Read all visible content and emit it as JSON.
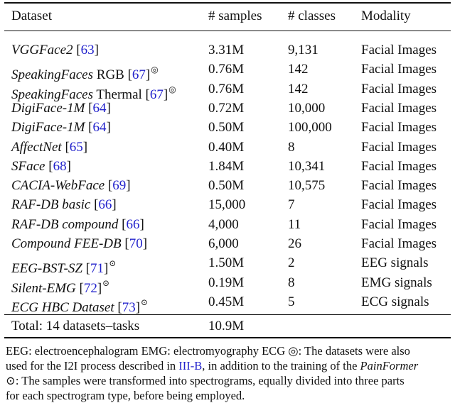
{
  "table": {
    "headers": [
      "Dataset",
      "# samples",
      "# classes",
      "Modality"
    ],
    "rows": [
      {
        "name": "VGGFace2",
        "name_extra": "",
        "ref": "63",
        "mark": "",
        "samples": "3.31M",
        "classes": "9,131",
        "modality": "Facial Images"
      },
      {
        "name": "SpeakingFaces",
        "name_extra": " RGB",
        "ref": "67",
        "mark": "◎",
        "samples": "0.76M",
        "classes": "142",
        "modality": "Facial Images"
      },
      {
        "name": "SpeakingFaces",
        "name_extra": " Thermal",
        "ref": "67",
        "mark": "◎",
        "samples": "0.76M",
        "classes": "142",
        "modality": "Facial Images"
      },
      {
        "name": "DigiFace-1M",
        "name_extra": "",
        "ref": "64",
        "mark": "",
        "samples": "0.72M",
        "classes": "10,000",
        "modality": "Facial Images"
      },
      {
        "name": "DigiFace-1M",
        "name_extra": "",
        "ref": "64",
        "mark": "",
        "samples": "0.50M",
        "classes": "100,000",
        "modality": "Facial Images"
      },
      {
        "name": "AffectNet",
        "name_extra": "",
        "ref": "65",
        "mark": "",
        "samples": "0.40M",
        "classes": "8",
        "modality": "Facial Images"
      },
      {
        "name": "SFace",
        "name_extra": "",
        "ref": "68",
        "mark": "",
        "samples": "1.84M",
        "classes": "10,341",
        "modality": "Facial Images"
      },
      {
        "name": "CACIA-WebFace",
        "name_extra": "",
        "ref": "69",
        "mark": "",
        "samples": "0.50M",
        "classes": "10,575",
        "modality": "Facial Images"
      },
      {
        "name": "RAF-DB basic",
        "name_extra": "",
        "ref": "66",
        "mark": "",
        "samples": "15,000",
        "classes": "7",
        "modality": "Facial Images"
      },
      {
        "name": "RAF-DB compound",
        "name_extra": "",
        "ref": "66",
        "mark": "",
        "samples": "4,000",
        "classes": "11",
        "modality": "Facial Images"
      },
      {
        "name": "Compound FEE-DB",
        "name_extra": "",
        "ref": "70",
        "mark": "",
        "samples": "6,000",
        "classes": "26",
        "modality": "Facial Images"
      },
      {
        "name": "EEG-BST-SZ",
        "name_extra": "",
        "ref": "71",
        "mark": "⊙",
        "samples": "1.50M",
        "classes": "2",
        "modality": "EEG signals"
      },
      {
        "name": "Silent-EMG",
        "name_extra": "",
        "ref": "72",
        "mark": "⊙",
        "samples": "0.19M",
        "classes": "8",
        "modality": "EMG signals"
      },
      {
        "name": "ECG HBC Dataset",
        "name_extra": "",
        "ref": "73",
        "mark": "⊙",
        "samples": "0.45M",
        "classes": "5",
        "modality": "ECG signals"
      }
    ],
    "total": {
      "label": "Total: 14 datasets–tasks",
      "samples": "10.9M"
    }
  },
  "footnotes": {
    "line1": "EEG: electroencephalogram  EMG: electromyography  ECG  ◎: The datasets were also",
    "line2_a": "used for the I2I process described in ",
    "line2_ref": "III-B",
    "line2_b": ", in addition to the training of the ",
    "line2_it": "PainFormer",
    "line3": "⊙: The samples were transformed into spectrograms, equally divided into three parts",
    "line4": "for each spectrogram type, before being employed."
  }
}
